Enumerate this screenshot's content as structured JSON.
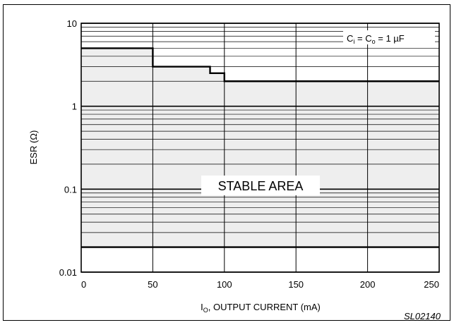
{
  "chart_data": {
    "type": "area",
    "x_ticks": [
      0,
      50,
      100,
      150,
      200,
      250
    ],
    "y_ticks": [
      0.01,
      0.1,
      1,
      10
    ],
    "y_tick_labels": [
      "0.01",
      "0.1",
      "1",
      "10"
    ],
    "x_tick_labels": [
      "0",
      "50",
      "100",
      "150",
      "200",
      "250"
    ],
    "xlim": [
      0,
      250
    ],
    "ylim": [
      0.01,
      10
    ],
    "y_scale": "log",
    "grid": true,
    "ylabel": "ESR (Ω)",
    "xlabel": {
      "prefix": "I",
      "subscript": "O",
      "suffix": ", OUTPUT CURRENT (mA)"
    },
    "condition_label": {
      "c1": "C",
      "c1_sub": "i",
      "eq1": " = ",
      "c2": "C",
      "c2_sub": "o",
      "eq2": " = 1 ",
      "unit": "µF"
    },
    "region_label": "STABLE AREA",
    "figure_code": "SL02140",
    "lower_boundary": {
      "y": 0.02
    },
    "upper_boundary": [
      {
        "x": 0,
        "y": 5
      },
      {
        "x": 50,
        "y": 5
      },
      {
        "x": 50,
        "y": 3
      },
      {
        "x": 90,
        "y": 3
      },
      {
        "x": 90,
        "y": 2.5
      },
      {
        "x": 100,
        "y": 2.5
      },
      {
        "x": 100,
        "y": 2
      },
      {
        "x": 250,
        "y": 2
      }
    ],
    "colors": {
      "stable_fill": "#eeeeee",
      "grid": "#000000",
      "boundary": "#000000"
    }
  }
}
